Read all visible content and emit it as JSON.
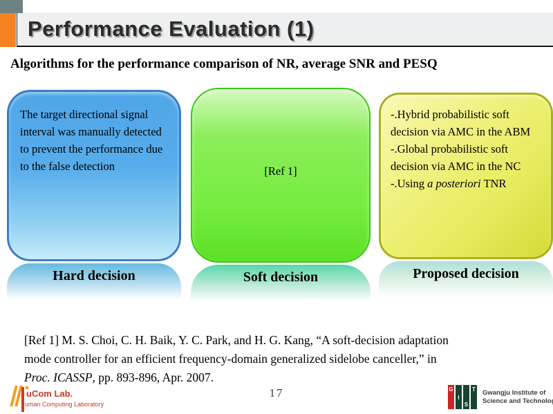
{
  "slide": {
    "title": "Performance Evaluation (1)",
    "subtitle": "Algorithms for the performance comparison of NR, average SNR and PESQ"
  },
  "boxes": {
    "hard": {
      "body": "The target directional signal interval was manually detected to prevent the performance due to the false detection",
      "label": "Hard decision"
    },
    "soft": {
      "body": "[Ref 1]",
      "label": "Soft decision"
    },
    "proposed": {
      "line1": "-.Hybrid probabilistic soft decision via AMC in the ABM",
      "line2": "-.Global probabilistic soft decision via AMC in the NC",
      "line3_pre": "-.Using ",
      "line3_italic": "a posteriori",
      "line3_post": " TNR",
      "label": "Proposed decision"
    }
  },
  "reference": {
    "line1": "[Ref 1] M. S. Choi, C. H. Baik, Y. C. Park, and H. G. Kang, “A soft-decision adaptation",
    "line2": "mode controller for an efficient frequency-domain generalized sidelobe canceller,”  in",
    "line3_italic": "Proc. ICASSP",
    "line3_rest": ", pp. 893-896, Apr. 2007."
  },
  "footer": {
    "page_number": "17",
    "hucom_line1": "uCom Lab.",
    "hucom_line2": "uman Computing Laboratory",
    "gist_letters": {
      "g": "G",
      "i": "I",
      "s": "S",
      "t": "T"
    },
    "gist_name1": "Gwangju Institute of",
    "gist_name2": "Science and Technology"
  },
  "colors": {
    "accent_orange": "#F58220",
    "header_square_gray": "#6C8184",
    "blue_box_border": "#3B7EC1",
    "blue_box_fill": "#57ACEA",
    "green_box_border": "#2FCC05",
    "green_box_fill": "#76EC41",
    "yellow_box_border": "#A9B21C",
    "yellow_box_fill": "#E9EC63",
    "hucom_red": "#C23A28",
    "gist_red": "#CC2229",
    "gist_green": "#17432F"
  }
}
